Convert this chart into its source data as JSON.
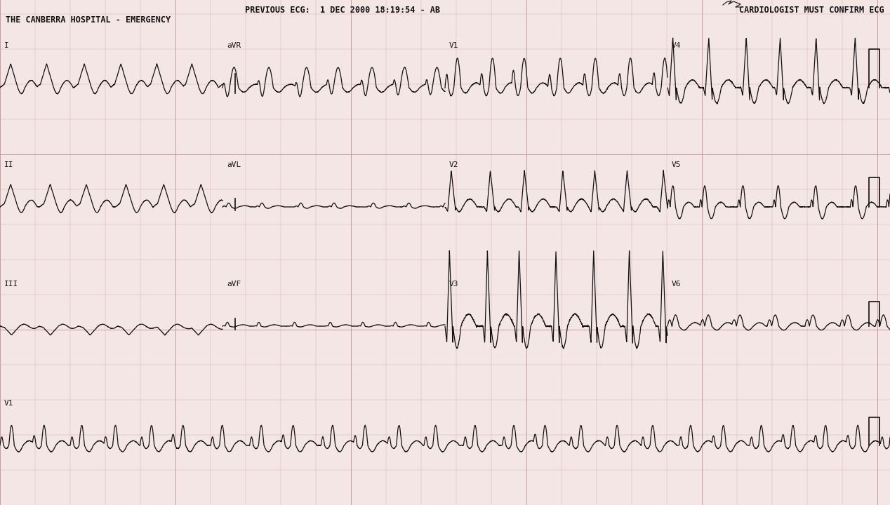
{
  "bg_color": "#f5e6e6",
  "grid_minor_color": "#d4aaaa",
  "grid_major_color": "#c09090",
  "line_color": "#111111",
  "text_color": "#111111",
  "header_line1": "         PREVIOUS ECG:  1 DEC 2000 18:19:54 - AB",
  "header_line2": "THE CANBERRA HOSPITAL - EMERGENCY",
  "header_right": "CARDIOLOGIST MUST CONFIRM ECG",
  "fig_width": 12.68,
  "fig_height": 7.2,
  "dpi": 100
}
